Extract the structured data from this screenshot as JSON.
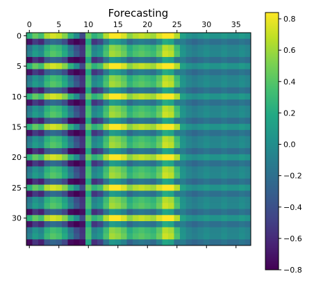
{
  "chart_data": {
    "type": "heatmap",
    "title": "Forecasting",
    "xlabel": "",
    "ylabel": "",
    "x_axis_position": "top",
    "n_cols": 38,
    "n_rows": 35,
    "xlim": [
      -0.5,
      37.5
    ],
    "ylim": [
      34.5,
      -0.5
    ],
    "x_ticks": [
      0,
      5,
      10,
      15,
      20,
      25,
      30,
      35
    ],
    "y_ticks": [
      0,
      5,
      10,
      15,
      20,
      25,
      30
    ],
    "colormap": "viridis",
    "value_range": [
      -0.8,
      0.84
    ],
    "colorbar": {
      "placement": "right",
      "ticks": [
        -0.8,
        -0.6,
        -0.4,
        -0.2,
        0.0,
        0.2,
        0.4,
        0.6,
        0.8
      ],
      "tick_labels": [
        "−0.8",
        "−0.6",
        "−0.4",
        "−0.2",
        "0.0",
        "0.2",
        "0.4",
        "0.6",
        "0.8"
      ]
    },
    "column_profile_approx": [
      -0.3,
      -0.1,
      -0.2,
      0.1,
      0.2,
      0.15,
      0.0,
      -0.3,
      -0.55,
      -0.6,
      0.3,
      -0.2,
      -0.1,
      0.2,
      0.45,
      0.4,
      0.3,
      0.1,
      0.2,
      0.25,
      0.2,
      0.15,
      0.3,
      0.55,
      0.5,
      0.2,
      0.0,
      -0.1,
      -0.15,
      -0.1,
      -0.05,
      -0.1,
      -0.1,
      -0.05,
      -0.1,
      -0.1,
      -0.05,
      -0.1
    ],
    "row_oscillation_period_approx": 2.5,
    "row_oscillation_amplitude_approx": 0.6,
    "grid": false
  }
}
